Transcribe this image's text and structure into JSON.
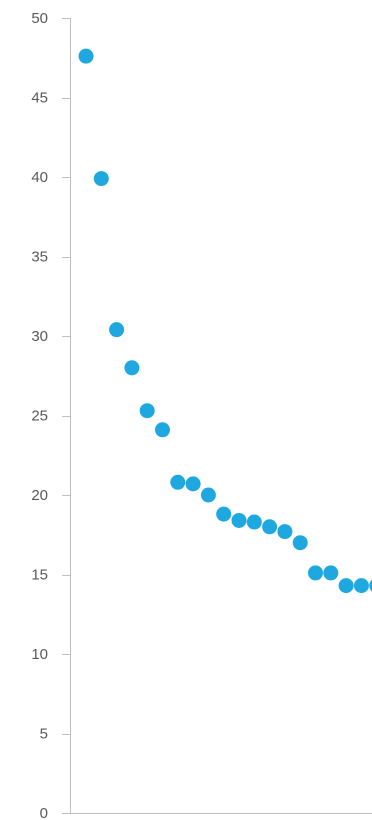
{
  "chart_data": {
    "type": "scatter",
    "title": "",
    "xlabel": "",
    "ylabel": "",
    "ylim": [
      0,
      50
    ],
    "y_ticks": [
      "0",
      "5",
      "10",
      "15",
      "20",
      "25",
      "30",
      "35",
      "40",
      "45",
      "50"
    ],
    "grid": false,
    "legend": "none",
    "marker_color": "#1FA8E0",
    "axis_color": "#BFBFBF",
    "series": [
      {
        "x": [
          1,
          2,
          3,
          4,
          5,
          6,
          7,
          8,
          9,
          10,
          11,
          12,
          13,
          14,
          15,
          16,
          17,
          18,
          19,
          20
        ],
        "y": [
          47.6,
          39.9,
          30.4,
          28.0,
          25.3,
          24.1,
          20.8,
          20.7,
          20.0,
          18.8,
          18.4,
          18.3,
          18.0,
          17.7,
          17.0,
          15.1,
          15.1,
          14.3,
          14.3,
          14.3
        ]
      }
    ]
  }
}
